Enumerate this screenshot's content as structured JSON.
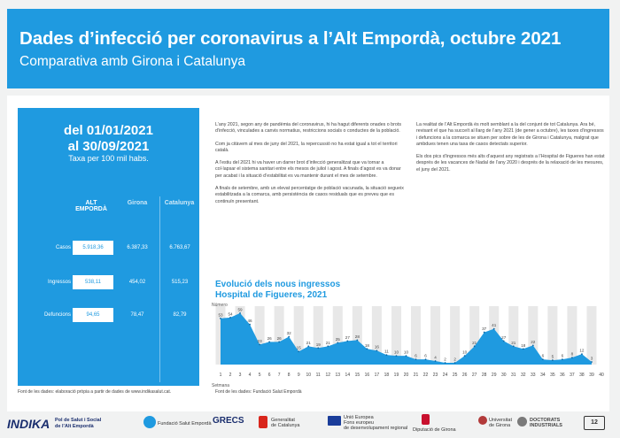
{
  "header": {
    "title": "Dades d’infecció per coronavirus a l’Alt Empordà, octubre 2021",
    "subtitle": "Comparativa amb Girona i Catalunya"
  },
  "summary": {
    "date_line1": "del 01/01/2021",
    "date_line2": "al 30/09/2021",
    "rate_label": "Taxa per 100 mil habs.",
    "col_alt": "ALT EMPORDÀ",
    "col_girona": "Girona",
    "col_cat": "Catalunya",
    "rows": [
      {
        "label": "Casos",
        "alt": "5.918,36",
        "girona": "6.387,33",
        "cat": "6.763,67"
      },
      {
        "label": "Ingressos",
        "alt": "538,11",
        "girona": "454,02",
        "cat": "515,23"
      },
      {
        "label": "Defuncions",
        "alt": "94,65",
        "girona": "78,47",
        "cat": "82,79"
      }
    ]
  },
  "text_left": [
    "L’any 2021, segon any de pandèmia del coronavirus, hi ha hagut diferents onades o brots d’infecció, vinculades a canvis normatius, restriccions socials o conductes de la població.",
    "Com ja citàvem al mes de juny del 2021, la repercussió no ha estat igual a tot el territori català.",
    "A l’estiu del 2021 hi va haver un darrer brot d’infecció generalitzat que va tornar a col·lapsar el sistema sanitari entre els mesos de juliol i agost. A finals d’agost es va donar per acabat i la situació d’estabilitat es va mantenir durant el mes de setembre.",
    "A finals de setembre, amb un elevat percentatge de població vacunada, la situació segueix estabilitzada a la comarca, amb persistència de casos residuals que es preveu que es continuïn presentant."
  ],
  "text_right": [
    "La realitat de l’Alt Empordà és molt semblant a la del conjunt de tot Catalunya. Ara bé, revisant el que ha succeït al llarg de l’any 2021 (de gener a octubre), les taxes d’ingressos i defuncions a la comarca se situen per sobre de les de Girona i Catalunya, malgrat que ambdues tenen una taxa de casos detectats superior.",
    "Els dos pics d’ingressos més alts d’aquest any registrats a l’Hospital de Figueres han estat després de les vacances de Nadal de l’any 2020 i després de la relaxació de les mesures, el juny del 2021."
  ],
  "chart_title_1": "Evolució dels nous ingressos",
  "chart_title_2": "Hospital de Figueres, 2021",
  "chart_data": {
    "type": "area",
    "ylabel": "Número",
    "xlabel": "Setmana",
    "x": [
      1,
      2,
      3,
      4,
      5,
      6,
      7,
      8,
      9,
      10,
      11,
      12,
      13,
      14,
      15,
      16,
      17,
      18,
      19,
      20,
      21,
      22,
      23,
      24,
      25,
      26,
      27,
      28,
      29,
      30,
      31,
      32,
      33,
      34,
      35,
      36,
      37,
      38,
      39,
      40
    ],
    "values": [
      53,
      54,
      59,
      46,
      23,
      26,
      26,
      32,
      15,
      21,
      19,
      21,
      25,
      27,
      28,
      18,
      16,
      11,
      10,
      10,
      6,
      6,
      4,
      2,
      2,
      10,
      21,
      37,
      41,
      27,
      21,
      18,
      22,
      6,
      5,
      6,
      8,
      12,
      3,
      null
    ],
    "labels": [
      "53",
      "54",
      "59",
      "46",
      "23",
      "26",
      "26",
      "32",
      "15",
      "21",
      "19",
      "21",
      "25",
      "27",
      "28",
      "18",
      "16",
      "11",
      "10",
      "10",
      "6",
      "6",
      "4",
      "2",
      "2",
      "10",
      "21",
      "37",
      "41",
      "27",
      "21",
      "18",
      "22",
      "6",
      "5",
      "6",
      "8",
      "12",
      "3",
      ""
    ],
    "tick_labels": [
      "1",
      "2",
      "3",
      "4",
      "5",
      "6",
      "7",
      "8",
      "9",
      "10",
      "11",
      "12",
      "13",
      "14",
      "15",
      "16",
      "17",
      "18",
      "19",
      "20",
      "21",
      "22",
      "23",
      "24",
      "25",
      "26",
      "27",
      "28",
      "29",
      "30",
      "31",
      "32",
      "33",
      "34",
      "35",
      "36",
      "37",
      "38",
      "39",
      "40"
    ],
    "colors": {
      "area": "#1f9ae0",
      "band": "#e8e8e8"
    }
  },
  "sources": {
    "left": "Font de les dades: elaboració pròpia a partir de dades de www.indikasalut.cat.",
    "right": "Font de les dades: Fundació Salut Empordà"
  },
  "footer": {
    "indika": "INDIKA",
    "indika_sub1": "Pol de Salut i Social",
    "indika_sub2": "de l’Alt Empordà",
    "fundacio": "Fundació Salut Empordà",
    "grecs": "GRECS",
    "generalitat1": "Generalitat",
    "generalitat2": "de Catalunya",
    "ue1": "Unió Europea",
    "ue2": "Fons europeu",
    "ue3": "de desenvolupament regional",
    "girona": "Diputació de Girona",
    "udg1": "Universitat",
    "udg2": "de Girona",
    "doctorats1": "DOCTORATS",
    "doctorats2": "INDUSTRIALS",
    "tag": "12"
  }
}
